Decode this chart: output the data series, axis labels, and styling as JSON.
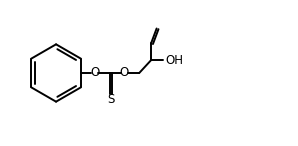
{
  "bg_color": "#ffffff",
  "line_color": "#000000",
  "text_color": "#000000",
  "label_O1": "O",
  "label_O2": "O",
  "label_S": "S",
  "label_OH": "OH",
  "line_width": 1.4,
  "font_size": 8.5,
  "fig_width": 2.98,
  "fig_height": 1.46,
  "dpi": 100
}
